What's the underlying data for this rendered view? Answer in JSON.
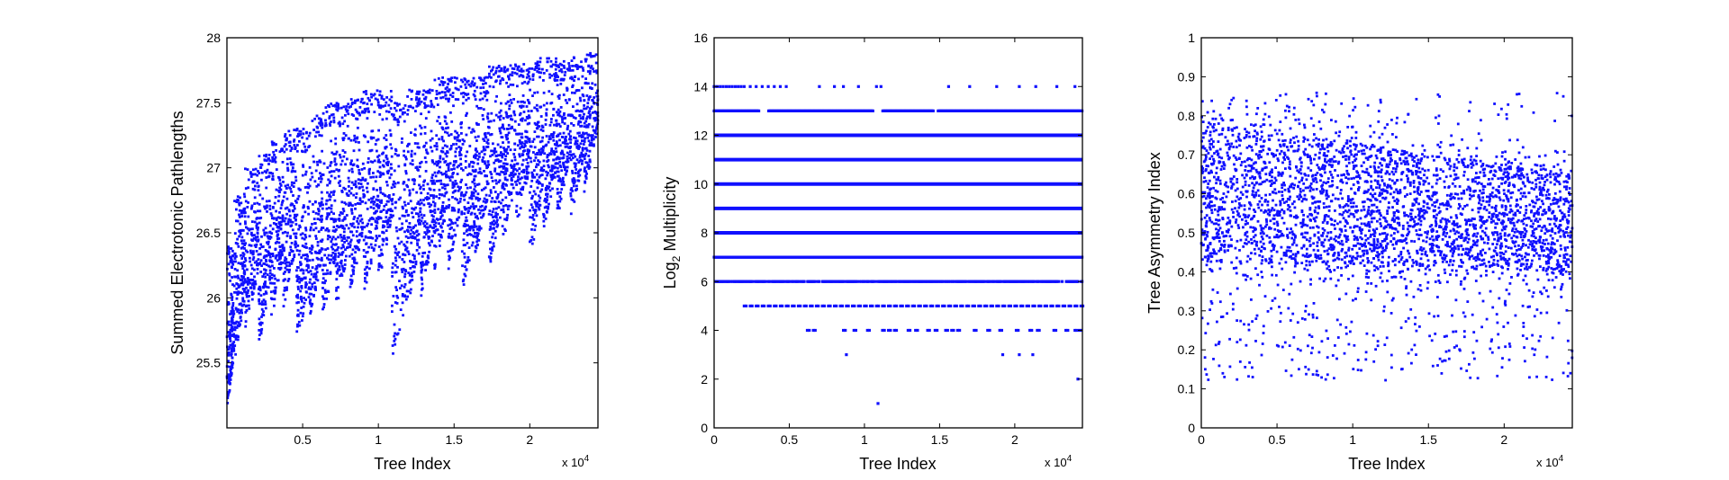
{
  "chart_data": [
    {
      "type": "scatter",
      "xlabel": "Tree Index",
      "ylabel": "Summed Electrotonic Pathlengths",
      "xlim": [
        0,
        24500
      ],
      "ylim": [
        25,
        28
      ],
      "x_multiplier": "x 10",
      "x_multiplier_exp": "4",
      "xticks": [
        {
          "value": 5000,
          "label": "0.5"
        },
        {
          "value": 10000,
          "label": "1"
        },
        {
          "value": 15000,
          "label": "1.5"
        },
        {
          "value": 20000,
          "label": "2"
        }
      ],
      "yticks": [
        {
          "value": 25.5,
          "label": "25.5"
        },
        {
          "value": 26,
          "label": "26"
        },
        {
          "value": 26.5,
          "label": "26.5"
        },
        {
          "value": 27,
          "label": "27"
        },
        {
          "value": 27.5,
          "label": "27.5"
        },
        {
          "value": 28,
          "label": "28"
        }
      ],
      "color": "#1010ff",
      "grid": false,
      "segments": [
        {
          "x0": 0,
          "x1": 500,
          "ytop": 26.4,
          "ybottom": 25.1
        },
        {
          "x0": 500,
          "x1": 1200,
          "ytop": 26.8,
          "ybottom": 25.5
        },
        {
          "x0": 1200,
          "x1": 2100,
          "ytop": 27.0,
          "ybottom": 25.7
        },
        {
          "x0": 2100,
          "x1": 2900,
          "ytop": 27.1,
          "ybottom": 25.6
        },
        {
          "x0": 2900,
          "x1": 3700,
          "ytop": 27.2,
          "ybottom": 25.8
        },
        {
          "x0": 3700,
          "x1": 4600,
          "ytop": 27.3,
          "ybottom": 25.9
        },
        {
          "x0": 4600,
          "x1": 5400,
          "ytop": 27.3,
          "ybottom": 25.6
        },
        {
          "x0": 5400,
          "x1": 6300,
          "ytop": 27.4,
          "ybottom": 25.8
        },
        {
          "x0": 6300,
          "x1": 7200,
          "ytop": 27.5,
          "ybottom": 25.8
        },
        {
          "x0": 7200,
          "x1": 8100,
          "ytop": 27.5,
          "ybottom": 25.9
        },
        {
          "x0": 8100,
          "x1": 9000,
          "ytop": 27.55,
          "ybottom": 26.0
        },
        {
          "x0": 9000,
          "x1": 10000,
          "ytop": 27.6,
          "ybottom": 26.0
        },
        {
          "x0": 10000,
          "x1": 10900,
          "ytop": 27.6,
          "ybottom": 26.1
        },
        {
          "x0": 10900,
          "x1": 11900,
          "ytop": 27.5,
          "ybottom": 25.5
        },
        {
          "x0": 11900,
          "x1": 12800,
          "ytop": 27.6,
          "ybottom": 25.9
        },
        {
          "x0": 12800,
          "x1": 13700,
          "ytop": 27.6,
          "ybottom": 26.0
        },
        {
          "x0": 13700,
          "x1": 14600,
          "ytop": 27.7,
          "ybottom": 26.2
        },
        {
          "x0": 14600,
          "x1": 15500,
          "ytop": 27.7,
          "ybottom": 26.2
        },
        {
          "x0": 15500,
          "x1": 16400,
          "ytop": 27.7,
          "ybottom": 26.0
        },
        {
          "x0": 16400,
          "x1": 17300,
          "ytop": 27.7,
          "ybottom": 26.3
        },
        {
          "x0": 17300,
          "x1": 18200,
          "ytop": 27.8,
          "ybottom": 26.2
        },
        {
          "x0": 18200,
          "x1": 19100,
          "ytop": 27.8,
          "ybottom": 26.4
        },
        {
          "x0": 19100,
          "x1": 20000,
          "ytop": 27.8,
          "ybottom": 26.5
        },
        {
          "x0": 20000,
          "x1": 20900,
          "ytop": 27.85,
          "ybottom": 26.3
        },
        {
          "x0": 20900,
          "x1": 21800,
          "ytop": 27.85,
          "ybottom": 26.5
        },
        {
          "x0": 21800,
          "x1": 22700,
          "ytop": 27.85,
          "ybottom": 26.6
        },
        {
          "x0": 22700,
          "x1": 23600,
          "ytop": 27.85,
          "ybottom": 26.6
        },
        {
          "x0": 23600,
          "x1": 24500,
          "ytop": 27.9,
          "ybottom": 26.8
        }
      ]
    },
    {
      "type": "scatter",
      "xlabel": "Tree Index",
      "ylabel": "Log",
      "ylabel_sub": "2",
      "ylabel_tail": " Multiplicity",
      "xlim": [
        0,
        24500
      ],
      "ylim": [
        0,
        16
      ],
      "x_multiplier": "x 10",
      "x_multiplier_exp": "4",
      "xticks": [
        {
          "value": 0,
          "label": "0"
        },
        {
          "value": 5000,
          "label": "0.5"
        },
        {
          "value": 10000,
          "label": "1"
        },
        {
          "value": 15000,
          "label": "1.5"
        },
        {
          "value": 20000,
          "label": "2"
        }
      ],
      "yticks": [
        {
          "value": 0,
          "label": "0"
        },
        {
          "value": 2,
          "label": "2"
        },
        {
          "value": 4,
          "label": "4"
        },
        {
          "value": 6,
          "label": "6"
        },
        {
          "value": 8,
          "label": "8"
        },
        {
          "value": 10,
          "label": "10"
        },
        {
          "value": 12,
          "label": "12"
        },
        {
          "value": 14,
          "label": "14"
        },
        {
          "value": 16,
          "label": "16"
        }
      ],
      "color": "#1010ff",
      "grid": false,
      "solid_levels": [
        8,
        9,
        10,
        11,
        12
      ],
      "dense_levels": [
        6,
        7,
        13
      ],
      "level_5_x": [
        2000,
        2400,
        2800,
        3200,
        3600,
        4000,
        4400,
        4800,
        5200,
        5600,
        6000,
        6400,
        6800,
        7200,
        7600,
        8000,
        8400,
        8800,
        9200,
        9600,
        10000,
        10400,
        10800,
        11200,
        11600,
        12000,
        12400,
        12800,
        13200,
        13600,
        14000,
        14400,
        14800,
        15200,
        15600,
        16000,
        16400,
        16800,
        17200,
        17600,
        18000,
        18400,
        18800,
        19200,
        19600,
        20000,
        20400,
        20800,
        21200,
        21600,
        22000,
        22400,
        22800,
        23200,
        23600,
        24000,
        24400
      ],
      "level_4_x": [
        6200,
        6600,
        8600,
        9300,
        10200,
        11200,
        11600,
        12000,
        12900,
        13400,
        14200,
        14700,
        15400,
        15800,
        16200,
        17300,
        18200,
        19000,
        20100,
        21000,
        21500,
        22600,
        23400,
        24000,
        24300
      ],
      "level_14_x": [
        0,
        200,
        400,
        600,
        800,
        1000,
        1200,
        1400,
        1600,
        1800,
        2000,
        2400,
        2800,
        3200,
        3600,
        4000,
        4400,
        4800,
        7000,
        8000,
        8600,
        9600,
        10800,
        11100,
        15600,
        17000,
        18800,
        20300,
        21400,
        22800,
        24000
      ],
      "level_3_x": [
        8800,
        19200,
        20300,
        21200
      ],
      "level_2_x": [
        24200
      ],
      "level_1_x": [
        10900
      ],
      "level_13_gaps": [
        [
          3000,
          3600
        ],
        [
          10600,
          11200
        ],
        [
          14600,
          14900
        ]
      ]
    },
    {
      "type": "scatter",
      "xlabel": "Tree Index",
      "ylabel": "Tree Asymmetry Index",
      "xlim": [
        0,
        24500
      ],
      "ylim": [
        0,
        1
      ],
      "x_multiplier": "x 10",
      "x_multiplier_exp": "4",
      "xticks": [
        {
          "value": 0,
          "label": "0"
        },
        {
          "value": 5000,
          "label": "0.5"
        },
        {
          "value": 10000,
          "label": "1"
        },
        {
          "value": 15000,
          "label": "1.5"
        },
        {
          "value": 20000,
          "label": "2"
        }
      ],
      "yticks": [
        {
          "value": 0,
          "label": "0"
        },
        {
          "value": 0.1,
          "label": "0.1"
        },
        {
          "value": 0.2,
          "label": "0.2"
        },
        {
          "value": 0.3,
          "label": "0.3"
        },
        {
          "value": 0.4,
          "label": "0.4"
        },
        {
          "value": 0.5,
          "label": "0.5"
        },
        {
          "value": 0.6,
          "label": "0.6"
        },
        {
          "value": 0.7,
          "label": "0.7"
        },
        {
          "value": 0.8,
          "label": "0.8"
        },
        {
          "value": 0.9,
          "label": "0.9"
        },
        {
          "value": 1,
          "label": "1"
        }
      ],
      "color": "#1010ff",
      "grid": false,
      "band": {
        "x": [
          0,
          24500
        ],
        "core_start": [
          0.43,
          0.78
        ],
        "core_end": [
          0.4,
          0.65
        ],
        "spread_min": 0.06,
        "spread_max": 0.87
      }
    }
  ]
}
